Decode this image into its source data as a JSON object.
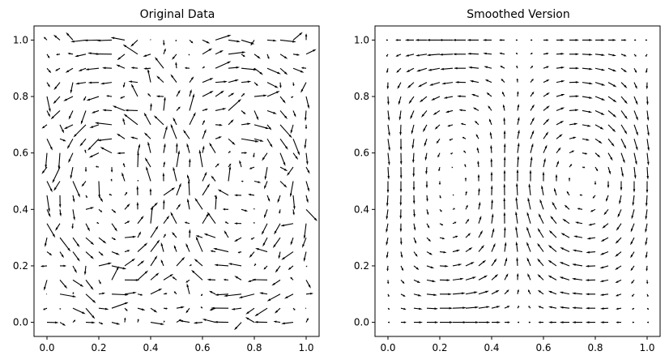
{
  "chart_data": [
    {
      "type": "quiver",
      "title": "Original Data",
      "xlabel": "",
      "ylabel": "",
      "xlim": [
        -0.05,
        1.05
      ],
      "ylim": [
        -0.05,
        1.05
      ],
      "x_ticks": [
        0.0,
        0.2,
        0.4,
        0.6,
        0.8,
        1.0
      ],
      "y_ticks": [
        0.0,
        0.2,
        0.4,
        0.6,
        0.8,
        1.0
      ],
      "x_tick_labels": [
        "0.0",
        "0.2",
        "0.4",
        "0.6",
        "0.8",
        "1.0"
      ],
      "y_tick_labels": [
        "0.0",
        "0.2",
        "0.4",
        "0.6",
        "0.8",
        "1.0"
      ],
      "grid": false,
      "grid_points": 21,
      "field": "u = sin(2πx)cos(πy) + noise, v = -cos(2πx)sin(πy) + noise (four-cell vortex pattern)",
      "noisy": true,
      "seed": 7
    },
    {
      "type": "quiver",
      "title": "Smoothed Version",
      "xlabel": "",
      "ylabel": "",
      "xlim": [
        -0.05,
        1.05
      ],
      "ylim": [
        -0.05,
        1.05
      ],
      "x_ticks": [
        0.0,
        0.2,
        0.4,
        0.6,
        0.8,
        1.0
      ],
      "y_ticks": [
        0.0,
        0.2,
        0.4,
        0.6,
        0.8,
        1.0
      ],
      "x_tick_labels": [
        "0.0",
        "0.2",
        "0.4",
        "0.6",
        "0.8",
        "1.0"
      ],
      "y_tick_labels": [
        "0.0",
        "0.2",
        "0.4",
        "0.6",
        "0.8",
        "1.0"
      ],
      "grid": false,
      "grid_points": 21,
      "field": "smoothed four-cell vortex pattern",
      "noisy": false,
      "seed": 7
    }
  ]
}
